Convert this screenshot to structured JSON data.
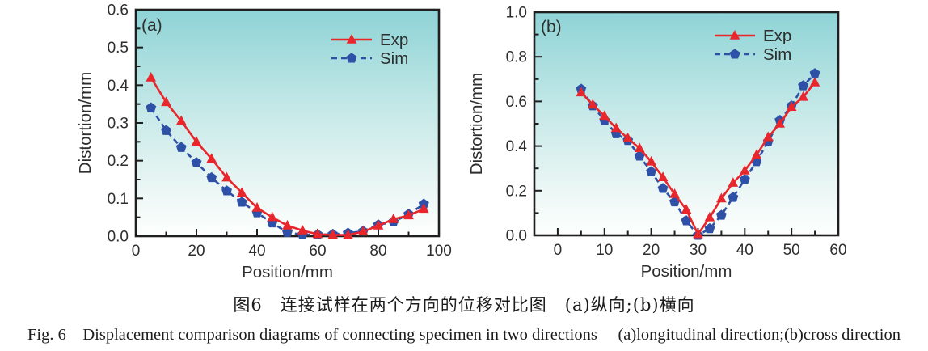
{
  "figure": {
    "caption_zh": "图6　连接试样在两个方向的位移对比图　(a)纵向;(b)横向",
    "caption_en": "Fig. 6　Displacement comparison diagrams of connecting specimen in two directions　 (a)longitudinal direction;(b)cross direction"
  },
  "colors": {
    "exp": "#e8262b",
    "sim": "#2e51a7",
    "axis": "#1f1f1f",
    "text": "#2e2e2e",
    "gradient_top": "#8ed3d6",
    "gradient_mid": "#c6e9e8",
    "gradient_low": "#eef8f6",
    "gradient_bottom": "#fdfffe"
  },
  "chart_data": [
    {
      "type": "line",
      "panel_label": "(a)",
      "xlabel": "Position/mm",
      "ylabel": "Distortion/mm",
      "xlim": [
        0,
        100
      ],
      "ylim": [
        0,
        0.6
      ],
      "x_major_ticks": [
        0,
        20,
        40,
        60,
        80,
        100
      ],
      "x_tick_labels": [
        "0",
        "20",
        "40",
        "60",
        "80",
        "100"
      ],
      "x_minor_ticks": [
        10,
        30,
        50,
        70,
        90
      ],
      "y_major_ticks": [
        0,
        0.1,
        0.2,
        0.3,
        0.4,
        0.5,
        0.6
      ],
      "y_tick_labels": [
        "0.0",
        "0.1",
        "0.2",
        "0.3",
        "0.4",
        "0.5",
        "0.6"
      ],
      "y_minor_ticks": [
        0.05,
        0.15,
        0.25,
        0.35,
        0.45,
        0.55
      ],
      "legend_position": "top-right",
      "grid": false,
      "x": [
        5,
        10,
        15,
        20,
        25,
        30,
        35,
        40,
        45,
        50,
        55,
        60,
        65,
        70,
        75,
        80,
        85,
        90,
        95
      ],
      "series": [
        {
          "name": "Exp",
          "marker": "triangle",
          "line_style": "solid",
          "values": [
            0.42,
            0.355,
            0.305,
            0.25,
            0.205,
            0.155,
            0.115,
            0.075,
            0.05,
            0.028,
            0.015,
            0.005,
            0.003,
            0.003,
            0.012,
            0.028,
            0.045,
            0.055,
            0.072
          ]
        },
        {
          "name": "Sim",
          "marker": "pentagon",
          "line_style": "dashed",
          "values": [
            0.34,
            0.28,
            0.235,
            0.195,
            0.155,
            0.12,
            0.09,
            0.062,
            0.035,
            0.01,
            0.004,
            0.004,
            0.005,
            0.008,
            0.013,
            0.03,
            0.038,
            0.058,
            0.085
          ]
        }
      ]
    },
    {
      "type": "line",
      "panel_label": "(b)",
      "xlabel": "Position/mm",
      "ylabel": "Distortion/mm",
      "xlim": [
        -5,
        60
      ],
      "ylim": [
        0,
        1.0
      ],
      "x_major_ticks": [
        0,
        10,
        20,
        30,
        40,
        50,
        60
      ],
      "x_tick_labels": [
        "0",
        "10",
        "20",
        "30",
        "40",
        "50",
        "60"
      ],
      "x_minor_ticks": [
        5,
        15,
        25,
        35,
        45,
        55
      ],
      "y_major_ticks": [
        0,
        0.2,
        0.4,
        0.6,
        0.8,
        1.0
      ],
      "y_tick_labels": [
        "0.0",
        "0.2",
        "0.4",
        "0.6",
        "0.8",
        "1.0"
      ],
      "y_minor_ticks": [
        0.1,
        0.3,
        0.5,
        0.7,
        0.9
      ],
      "legend_position": "top-right",
      "grid": false,
      "x": [
        5,
        7.5,
        10,
        12.5,
        15,
        17.5,
        20,
        22.5,
        25,
        27.5,
        30,
        32.5,
        35,
        37.5,
        40,
        42.5,
        45,
        47.5,
        50,
        52.5,
        55
      ],
      "series": [
        {
          "name": "Exp",
          "marker": "triangle",
          "line_style": "solid",
          "values": [
            0.64,
            0.585,
            0.535,
            0.48,
            0.435,
            0.39,
            0.33,
            0.26,
            0.185,
            0.115,
            0.005,
            0.08,
            0.165,
            0.235,
            0.29,
            0.36,
            0.44,
            0.5,
            0.575,
            0.62,
            0.685
          ]
        },
        {
          "name": "Sim",
          "marker": "pentagon",
          "line_style": "dashed",
          "values": [
            0.655,
            0.58,
            0.515,
            0.455,
            0.425,
            0.355,
            0.285,
            0.21,
            0.15,
            0.065,
            0.0,
            0.03,
            0.09,
            0.17,
            0.25,
            0.33,
            0.42,
            0.515,
            0.58,
            0.67,
            0.725
          ]
        }
      ]
    }
  ]
}
